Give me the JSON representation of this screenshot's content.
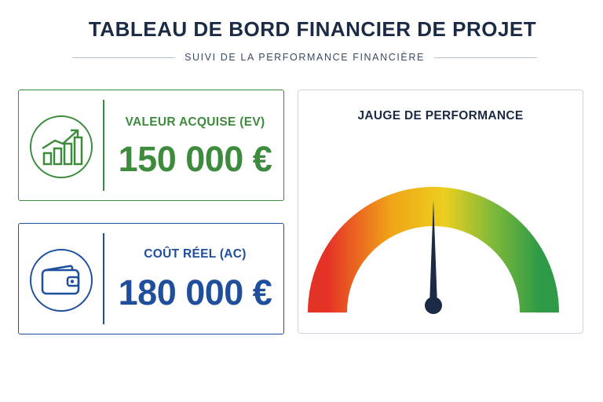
{
  "header": {
    "title": "TABLEAU DE BORD FINANCIER DE PROJET",
    "subtitle": "SUIVI DE LA PERFORMANCE FINANCIÈRE"
  },
  "cards": {
    "earned_value": {
      "label": "VALEUR ACQUISE (EV)",
      "value": "150 000 €",
      "icon": "growth-chart-icon",
      "color": "#3d8b3d"
    },
    "actual_cost": {
      "label": "COÛT RÉEL (AC)",
      "value": "180 000 €",
      "icon": "wallet-icon",
      "color": "#1f4e9c"
    }
  },
  "gauge": {
    "title": "JAUGE DE PERFORMANCE",
    "needle_fraction": 0.5,
    "colors": [
      "#e53227",
      "#f0a417",
      "#eccf1e",
      "#7fb93a",
      "#2f9a47"
    ],
    "needle_color": "#1b2a45"
  }
}
